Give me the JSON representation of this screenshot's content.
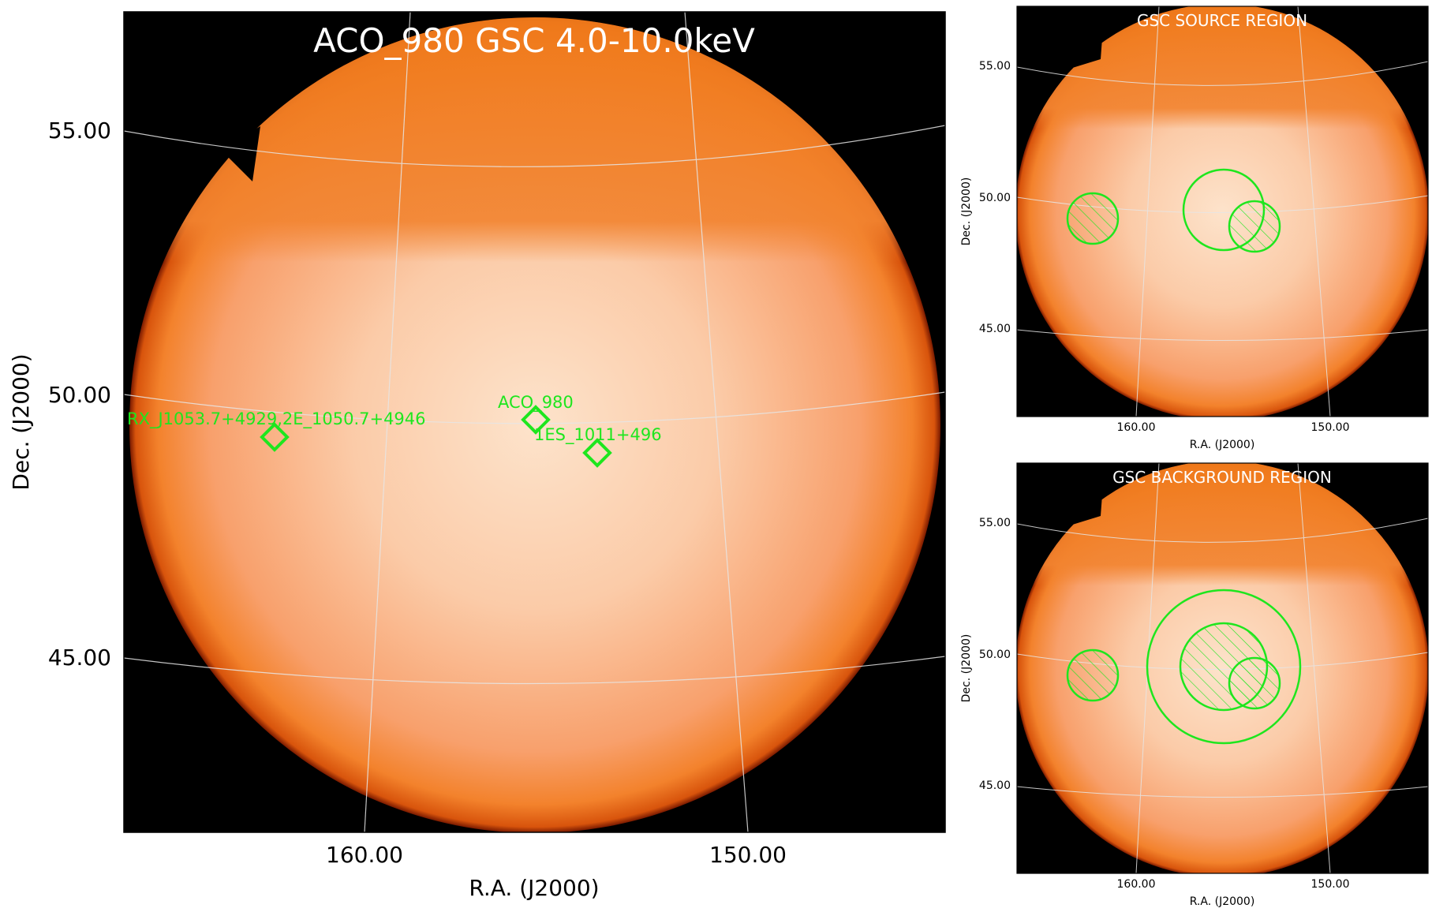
{
  "main_panel": {
    "title": "ACO_980 GSC 4.0-10.0keV",
    "xlabel": "R.A. (J2000)",
    "ylabel": "Dec. (J2000)",
    "x_ticks": [
      "160.00",
      "150.00"
    ],
    "y_ticks": [
      "55.00",
      "50.00",
      "45.00"
    ],
    "sources": [
      {
        "name": "RX_J1053.7+4929,2E_1050.7+4946"
      },
      {
        "name": "ACO_980"
      },
      {
        "name": "1ES_1011+496"
      }
    ]
  },
  "source_panel": {
    "title": "GSC SOURCE REGION",
    "xlabel": "R.A. (J2000)",
    "ylabel": "Dec. (J2000)",
    "x_ticks": [
      "160.00",
      "150.00"
    ],
    "y_ticks": [
      "55.00",
      "50.00",
      "45.00"
    ]
  },
  "background_panel": {
    "title": "GSC BACKGROUND REGION",
    "xlabel": "R.A. (J2000)",
    "ylabel": "Dec. (J2000)",
    "x_ticks": [
      "160.00",
      "150.00"
    ],
    "y_ticks": [
      "55.00",
      "50.00",
      "45.00"
    ]
  },
  "colors": {
    "marker": "#1ee61e",
    "title_text": "#ffffff",
    "field_core": "#fde6cf",
    "field_mid": "#f9a878",
    "field_edge": "#f07a1a",
    "background": "#000000"
  }
}
